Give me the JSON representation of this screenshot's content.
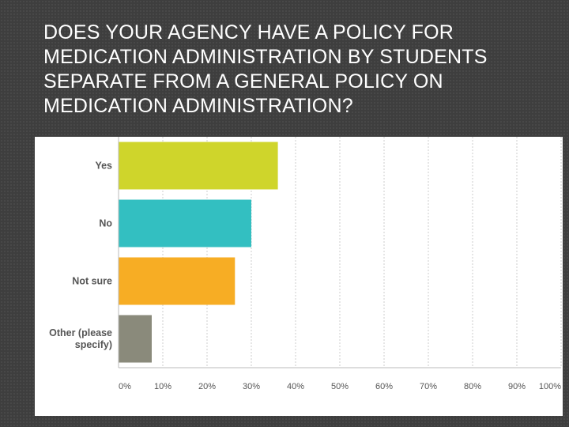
{
  "slide": {
    "title": "DOES YOUR AGENCY HAVE A POLICY FOR MEDICATION ADMINISTRATION BY STUDENTS SEPARATE FROM A GENERAL POLICY ON MEDICATION ADMINISTRATION?"
  },
  "chart_data": {
    "type": "bar",
    "orientation": "horizontal",
    "title": "DOES YOUR AGENCY HAVE A POLICY FOR MEDICATION ADMINISTRATION BY STUDENTS SEPARATE FROM A GENERAL POLICY ON MEDICATION ADMINISTRATION?",
    "categories": [
      {
        "label": "Yes",
        "lines": [
          "Yes"
        ]
      },
      {
        "label": "No",
        "lines": [
          "No"
        ]
      },
      {
        "label": "Not sure",
        "lines": [
          "Not sure"
        ]
      },
      {
        "label": "Other (please specify)",
        "lines": [
          "Other (please",
          "specify)"
        ]
      }
    ],
    "values": [
      36,
      30,
      26.3,
      7.5
    ],
    "colors": [
      "#cfd52b",
      "#33bfc1",
      "#f7ad24",
      "#8a8a7b"
    ],
    "xlim": [
      0,
      100
    ],
    "xticks": [
      0,
      10,
      20,
      30,
      40,
      50,
      60,
      70,
      80,
      90,
      100
    ],
    "xtick_labels": [
      "0%",
      "10%",
      "20%",
      "30%",
      "40%",
      "50%",
      "60%",
      "70%",
      "80%",
      "90%",
      "100%"
    ],
    "grid": true,
    "xlabel": "",
    "ylabel": ""
  }
}
